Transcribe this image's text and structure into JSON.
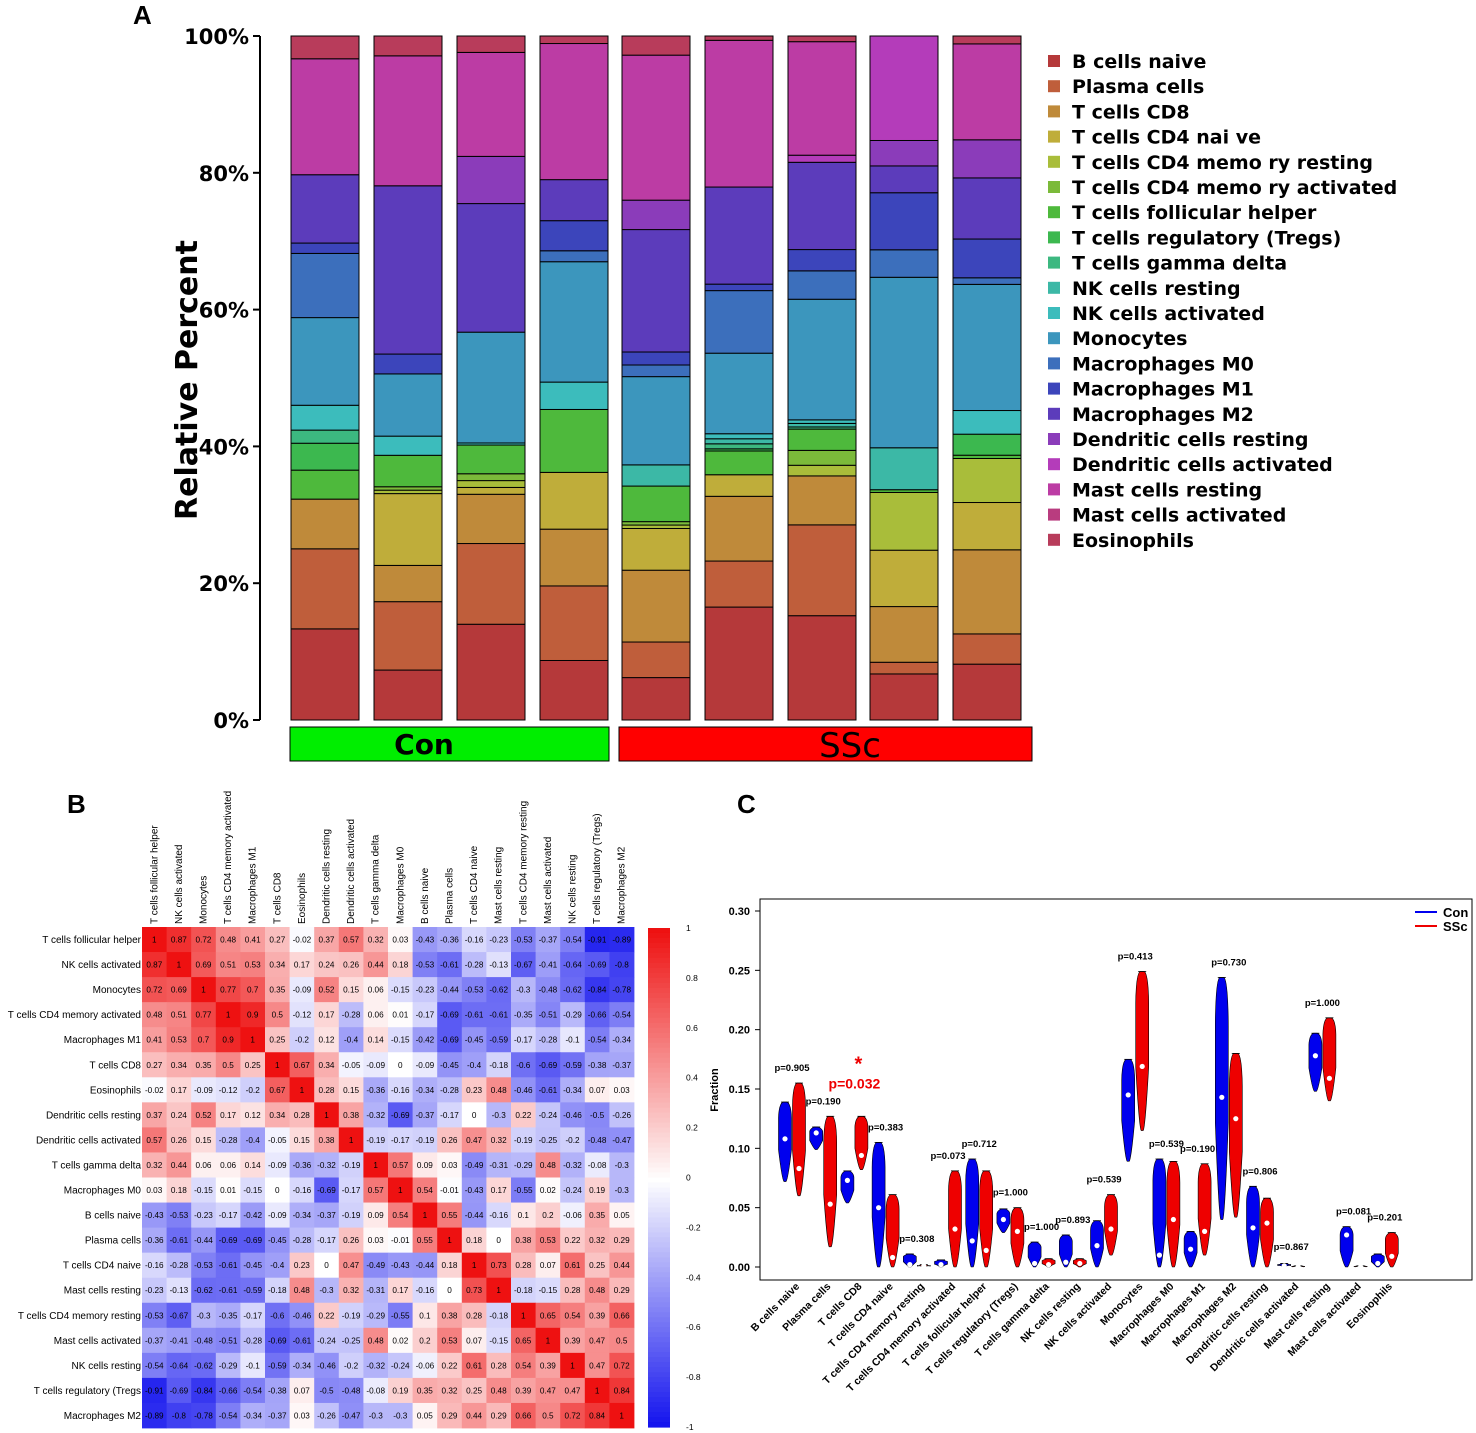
{
  "panels": {
    "a": "A",
    "b": "B",
    "c": "C"
  },
  "colors": {
    "cell_types": [
      "#b5393a",
      "#bf5e3b",
      "#bf8a3a",
      "#bfad3a",
      "#a9bd3a",
      "#7bba3a",
      "#4eb93c",
      "#3cb84f",
      "#3cb880",
      "#3cb8a6",
      "#3cbcbc",
      "#3c96bd",
      "#3c6fbc",
      "#3c45bb",
      "#5c3cbb",
      "#8b3cba",
      "#b43cba",
      "#bc3ca4",
      "#b93c7f",
      "#b83c5b"
    ],
    "con": "#00ee00",
    "ssc": "#ff0000",
    "violin_con": "#0000ee",
    "violin_ssc": "#ee0000",
    "heat_pos": "#ee1111",
    "heat_neg": "#1111ee"
  },
  "chart_data": [
    {
      "type": "bar",
      "subtype": "stacked-percent",
      "ylabel": "Relative Percent",
      "yticks": [
        "0%",
        "20%",
        "40%",
        "60%",
        "80%",
        "100%"
      ],
      "ylim": [
        0,
        100
      ],
      "groups": [
        {
          "label": "Con",
          "samples": 4
        },
        {
          "label": "SSc",
          "samples": 5
        }
      ],
      "legend": [
        "B cells naive",
        "Plasma cells",
        "T cells CD8",
        "T cells CD4 nai ve",
        "T cells CD4 memo ry resting",
        "T cells CD4 memo ry activated",
        "T cells follicular helper",
        "T cells regulatory (Tregs)",
        "T cells gamma delta",
        "NK cells resting",
        "NK cells activated",
        "Monocytes",
        "Macrophages M0",
        "Macrophages M1",
        "Macrophages M2",
        "Dendritic cells resting",
        "Dendritic cells activated",
        "Mast cells resting",
        "Mast cells activated",
        "Eosinophils"
      ],
      "series_values": [
        [
          13.2,
          11.6,
          7.2,
          0,
          0,
          0,
          4.2,
          3.9,
          1.9,
          0,
          3.6,
          12.7,
          9.3,
          1.5,
          9.9,
          0,
          0,
          16.8,
          0,
          3.3
        ],
        [
          7.3,
          10.0,
          5.3,
          10.5,
          0.5,
          0.5,
          4.6,
          0,
          0,
          0,
          2.8,
          9.1,
          0,
          2.9,
          24.6,
          0,
          0,
          19.0,
          0,
          2.9
        ],
        [
          14.0,
          11.8,
          7.2,
          1.0,
          1.0,
          1.0,
          4.2,
          0,
          0,
          0,
          0.3,
          16.2,
          0,
          0,
          18.8,
          6.9,
          0,
          15.2,
          0,
          2.4
        ],
        [
          8.7,
          10.9,
          8.3,
          8.3,
          0,
          0,
          9.2,
          0,
          0,
          0,
          4.0,
          17.6,
          1.6,
          4.4,
          6.0,
          0,
          0,
          19.9,
          0,
          1.1
        ],
        [
          6.2,
          5.2,
          10.5,
          6.1,
          0.5,
          0.5,
          5.2,
          0,
          0,
          3.1,
          0,
          12.9,
          1.7,
          1.9,
          17.9,
          4.3,
          0,
          21.2,
          0,
          2.8
        ],
        [
          15.7,
          6.4,
          9.0,
          3.0,
          0,
          0,
          3.3,
          0.3,
          0.7,
          0.7,
          0.7,
          11.2,
          8.7,
          0.9,
          13.5,
          0,
          0,
          20.4,
          0,
          0.6
        ],
        [
          14.7,
          12.8,
          6.9,
          0,
          1.5,
          2.1,
          3.0,
          0,
          0.3,
          0.5,
          0.5,
          17.0,
          4.0,
          3.0,
          12.3,
          0,
          1.0,
          16.0,
          0,
          0.8
        ],
        [
          6.7,
          1.7,
          8.1,
          8.2,
          8.4,
          0,
          0.4,
          0,
          0,
          6.1,
          0,
          24.8,
          4.0,
          8.3,
          3.9,
          3.7,
          15.2,
          0,
          0,
          0
        ],
        [
          8.5,
          4.6,
          12.8,
          7.2,
          6.7,
          0,
          0.5,
          3.2,
          0,
          0,
          3.6,
          19.2,
          1.0,
          5.9,
          9.3,
          5.8,
          0,
          14.6,
          0,
          1.2
        ]
      ]
    },
    {
      "type": "heatmap",
      "labels": [
        "T cells follicular helper",
        "NK cells activated",
        "Monocytes",
        "T cells CD4 memory activated",
        "Macrophages M1",
        "T cells CD8",
        "Eosinophils",
        "Dendritic cells resting",
        "Dendritic cells activated",
        "T cells gamma delta",
        "Macrophages M0",
        "B cells naive",
        "Plasma cells",
        "T cells CD4 naive",
        "Mast cells resting",
        "T cells CD4 memory resting",
        "Mast cells activated",
        "NK cells resting",
        "T cells regulatory (Tregs)",
        "Macrophages M2"
      ],
      "row_labels": [
        "T cells follicular helper",
        "NK cells activated",
        "Monocytes",
        "T cells CD4 memory activated",
        "Macrophages M1",
        "T cells CD8",
        "Eosinophils",
        "Dendritic cells resting",
        "Dendritic cells activated",
        "T cells gamma delta",
        "Macrophages M0",
        "B cells naive",
        "Plasma cells",
        "T cells CD4 naive",
        "Mast cells resting",
        "T cells CD4 memory resting",
        "Mast cells activated",
        "NK cells resting",
        "T cells regulatory (Tregs",
        "Macrophages M2"
      ],
      "values": [
        [
          1,
          0.87,
          0.72,
          0.48,
          0.41,
          0.27,
          -0.02,
          0.37,
          0.57,
          0.32,
          0.03,
          -0.43,
          -0.36,
          -0.16,
          -0.23,
          -0.53,
          -0.37,
          -0.54,
          -0.91,
          -0.89
        ],
        [
          0.87,
          1,
          0.69,
          0.51,
          0.53,
          0.34,
          0.17,
          0.24,
          0.26,
          0.44,
          0.18,
          -0.53,
          -0.61,
          -0.28,
          -0.13,
          -0.67,
          -0.41,
          -0.64,
          -0.69,
          -0.8
        ],
        [
          0.72,
          0.69,
          1,
          0.77,
          0.7,
          0.35,
          -0.09,
          0.52,
          0.15,
          0.06,
          -0.15,
          -0.23,
          -0.44,
          -0.53,
          -0.62,
          -0.3,
          -0.48,
          -0.62,
          -0.84,
          -0.78
        ],
        [
          0.48,
          0.51,
          0.77,
          1,
          0.9,
          0.5,
          -0.12,
          0.17,
          -0.28,
          0.06,
          0.01,
          -0.17,
          -0.69,
          -0.61,
          -0.61,
          -0.35,
          -0.51,
          -0.29,
          -0.66,
          -0.54
        ],
        [
          0.41,
          0.53,
          0.7,
          0.9,
          1,
          0.25,
          -0.2,
          0.12,
          -0.4,
          0.14,
          -0.15,
          -0.42,
          -0.69,
          -0.45,
          -0.59,
          -0.17,
          -0.28,
          -0.1,
          -0.54,
          -0.34
        ],
        [
          0.27,
          0.34,
          0.35,
          0.5,
          0.25,
          1,
          0.67,
          0.34,
          -0.05,
          -0.09,
          0,
          -0.09,
          -0.45,
          -0.4,
          -0.18,
          -0.6,
          -0.69,
          -0.59,
          -0.38,
          -0.37
        ],
        [
          -0.02,
          0.17,
          -0.09,
          -0.12,
          -0.2,
          0.67,
          1,
          0.28,
          0.15,
          -0.36,
          -0.16,
          -0.34,
          -0.28,
          0.23,
          0.48,
          -0.46,
          -0.61,
          -0.34,
          0.07,
          0.03
        ],
        [
          0.37,
          0.24,
          0.52,
          0.17,
          0.12,
          0.34,
          0.28,
          1,
          0.38,
          -0.32,
          -0.69,
          -0.37,
          -0.17,
          0,
          -0.3,
          0.22,
          -0.24,
          -0.46,
          -0.5,
          -0.26
        ],
        [
          0.57,
          0.26,
          0.15,
          -0.28,
          -0.4,
          -0.05,
          0.15,
          0.38,
          1,
          -0.19,
          -0.17,
          -0.19,
          0.26,
          0.47,
          0.32,
          -0.19,
          -0.25,
          -0.2,
          -0.48,
          -0.47
        ],
        [
          0.32,
          0.44,
          0.06,
          0.06,
          0.14,
          -0.09,
          -0.36,
          -0.32,
          -0.19,
          1,
          0.57,
          0.09,
          0.03,
          -0.49,
          -0.31,
          -0.29,
          0.48,
          -0.32,
          -0.08,
          -0.3
        ],
        [
          0.03,
          0.18,
          -0.15,
          0.01,
          -0.15,
          0,
          -0.16,
          -0.69,
          -0.17,
          0.57,
          1,
          0.54,
          -0.01,
          -0.43,
          0.17,
          -0.55,
          0.02,
          -0.24,
          0.19,
          -0.3
        ],
        [
          -0.43,
          -0.53,
          -0.23,
          -0.17,
          -0.42,
          -0.09,
          -0.34,
          -0.37,
          -0.19,
          0.09,
          0.54,
          1,
          0.55,
          -0.44,
          -0.16,
          0.1,
          0.2,
          -0.06,
          0.35,
          0.05
        ],
        [
          -0.36,
          -0.61,
          -0.44,
          -0.69,
          -0.69,
          -0.45,
          -0.28,
          -0.17,
          0.26,
          0.03,
          -0.01,
          0.55,
          1,
          0.18,
          0,
          0.38,
          0.53,
          0.22,
          0.32,
          0.29
        ],
        [
          -0.16,
          -0.28,
          -0.53,
          -0.61,
          -0.45,
          -0.4,
          0.23,
          0,
          0.47,
          -0.49,
          -0.43,
          -0.44,
          0.18,
          1,
          0.73,
          0.28,
          0.07,
          0.61,
          0.25,
          0.44
        ],
        [
          -0.23,
          -0.13,
          -0.62,
          -0.61,
          -0.59,
          -0.18,
          0.48,
          -0.3,
          0.32,
          -0.31,
          0.17,
          -0.16,
          0,
          0.73,
          1,
          -0.18,
          -0.15,
          0.28,
          0.48,
          0.29
        ],
        [
          -0.53,
          -0.67,
          -0.3,
          -0.35,
          -0.17,
          -0.6,
          -0.46,
          0.22,
          -0.19,
          -0.29,
          -0.55,
          0.1,
          0.38,
          0.28,
          -0.18,
          1,
          0.65,
          0.54,
          0.39,
          0.66
        ],
        [
          -0.37,
          -0.41,
          -0.48,
          -0.51,
          -0.28,
          -0.69,
          -0.61,
          -0.24,
          -0.25,
          0.48,
          0.02,
          0.2,
          0.53,
          0.07,
          -0.15,
          0.65,
          1,
          0.39,
          0.47,
          0.5
        ],
        [
          -0.54,
          -0.64,
          -0.62,
          -0.29,
          -0.1,
          -0.59,
          -0.34,
          -0.46,
          -0.2,
          -0.32,
          -0.24,
          -0.06,
          0.22,
          0.61,
          0.28,
          0.54,
          0.39,
          1,
          0.47,
          0.72
        ],
        [
          -0.91,
          -0.69,
          -0.84,
          -0.66,
          -0.54,
          -0.38,
          0.07,
          -0.5,
          -0.48,
          -0.08,
          0.19,
          0.35,
          0.32,
          0.25,
          0.48,
          0.39,
          0.47,
          0.47,
          1,
          0.84
        ],
        [
          -0.89,
          -0.8,
          -0.78,
          -0.54,
          -0.34,
          -0.37,
          0.03,
          -0.26,
          -0.47,
          -0.3,
          -0.3,
          0.05,
          0.29,
          0.44,
          0.29,
          0.66,
          0.5,
          0.72,
          0.84,
          1
        ]
      ],
      "colorbar_ticks": [
        "1",
        "0.8",
        "0.6",
        "0.4",
        "0.2",
        "0",
        "-0.2",
        "-0.4",
        "-0.6",
        "-0.8",
        "-1"
      ]
    },
    {
      "type": "violin",
      "ylabel": "Fraction",
      "ylim": [
        0,
        0.3
      ],
      "yticks": [
        "0.00",
        "0.05",
        "0.10",
        "0.15",
        "0.20",
        "0.25",
        "0.30"
      ],
      "legend": [
        "Con",
        "SSc"
      ],
      "categories": [
        "B cells naive",
        "Plasma cells",
        "T cells CD8",
        "T cells CD4 naive",
        "T cells CD4 memory resting",
        "T cells CD4 memory activated",
        "T cells follicular helper",
        "T cells regulatory (Tregs)",
        "T cells gamma delta",
        "NK cells resting",
        "NK cells activated",
        "Monocytes",
        "Macrophages M0",
        "Macrophages M1",
        "Macrophages M2",
        "Dendritic cells resting",
        "Dendritic cells activated",
        "Mast cells resting",
        "Mast cells activated",
        "Eosinophils"
      ],
      "pvalues": [
        "p=0.905",
        "p=0.190",
        "p=0.032",
        "p=0.383",
        "p=0.308",
        "p=0.073",
        "p=0.712",
        "p=1.000",
        "p=1.000",
        "p=0.893",
        "p=0.539",
        "p=0.413",
        "p=0.539",
        "p=0.190",
        "p=0.730",
        "p=0.806",
        "p=0.867",
        "p=1.000",
        "p=0.081",
        "p=0.201"
      ],
      "significance_mark": "*",
      "significant_index": 2,
      "con": [
        {
          "min": 0.072,
          "max": 0.139,
          "median": 0.108
        },
        {
          "min": 0.099,
          "max": 0.118,
          "median": 0.113
        },
        {
          "min": 0.054,
          "max": 0.081,
          "median": 0.073
        },
        {
          "min": 0,
          "max": 0.105,
          "median": 0.05
        },
        {
          "min": 0,
          "max": 0.011,
          "median": 0.002
        },
        {
          "min": 0,
          "max": 0.006,
          "median": 0.002
        },
        {
          "min": 0,
          "max": 0.091,
          "median": 0.022
        },
        {
          "min": 0.029,
          "max": 0.049,
          "median": 0.04
        },
        {
          "min": 0,
          "max": 0.021,
          "median": 0.003
        },
        {
          "min": 0,
          "max": 0.027,
          "median": 0.004
        },
        {
          "min": 0,
          "max": 0.039,
          "median": 0.018
        },
        {
          "min": 0.089,
          "max": 0.175,
          "median": 0.145
        },
        {
          "min": 0,
          "max": 0.091,
          "median": 0.01
        },
        {
          "min": 0,
          "max": 0.03,
          "median": 0.015
        },
        {
          "min": 0.04,
          "max": 0.244,
          "median": 0.143
        },
        {
          "min": 0,
          "max": 0.068,
          "median": 0.033
        },
        {
          "min": 0,
          "max": 0.003,
          "median": 0.001
        },
        {
          "min": 0.148,
          "max": 0.197,
          "median": 0.178
        },
        {
          "min": 0,
          "max": 0.034,
          "median": 0.027
        },
        {
          "min": 0,
          "max": 0.011,
          "median": 0.003
        }
      ],
      "ssc": [
        {
          "min": 0.06,
          "max": 0.155,
          "median": 0.083
        },
        {
          "min": 0.017,
          "max": 0.127,
          "median": 0.053
        },
        {
          "min": 0.082,
          "max": 0.127,
          "median": 0.094
        },
        {
          "min": 0,
          "max": 0.061,
          "median": 0.008
        },
        {
          "min": 0,
          "max": 0.002,
          "median": 0.001
        },
        {
          "min": 0,
          "max": 0.081,
          "median": 0.032
        },
        {
          "min": 0,
          "max": 0.081,
          "median": 0.014
        },
        {
          "min": 0,
          "max": 0.05,
          "median": 0.03
        },
        {
          "min": 0,
          "max": 0.007,
          "median": 0.002
        },
        {
          "min": 0,
          "max": 0.007,
          "median": 0.003
        },
        {
          "min": 0.01,
          "max": 0.061,
          "median": 0.032
        },
        {
          "min": 0.115,
          "max": 0.249,
          "median": 0.169
        },
        {
          "min": 0,
          "max": 0.089,
          "median": 0.04
        },
        {
          "min": 0.01,
          "max": 0.087,
          "median": 0.03
        },
        {
          "min": 0.042,
          "max": 0.18,
          "median": 0.125
        },
        {
          "min": 0,
          "max": 0.058,
          "median": 0.037
        },
        {
          "min": 0,
          "max": 0.001,
          "median": 0
        },
        {
          "min": 0.14,
          "max": 0.21,
          "median": 0.159
        },
        {
          "min": 0,
          "max": 0.001,
          "median": 0
        },
        {
          "min": 0,
          "max": 0.029,
          "median": 0.009
        }
      ]
    }
  ]
}
